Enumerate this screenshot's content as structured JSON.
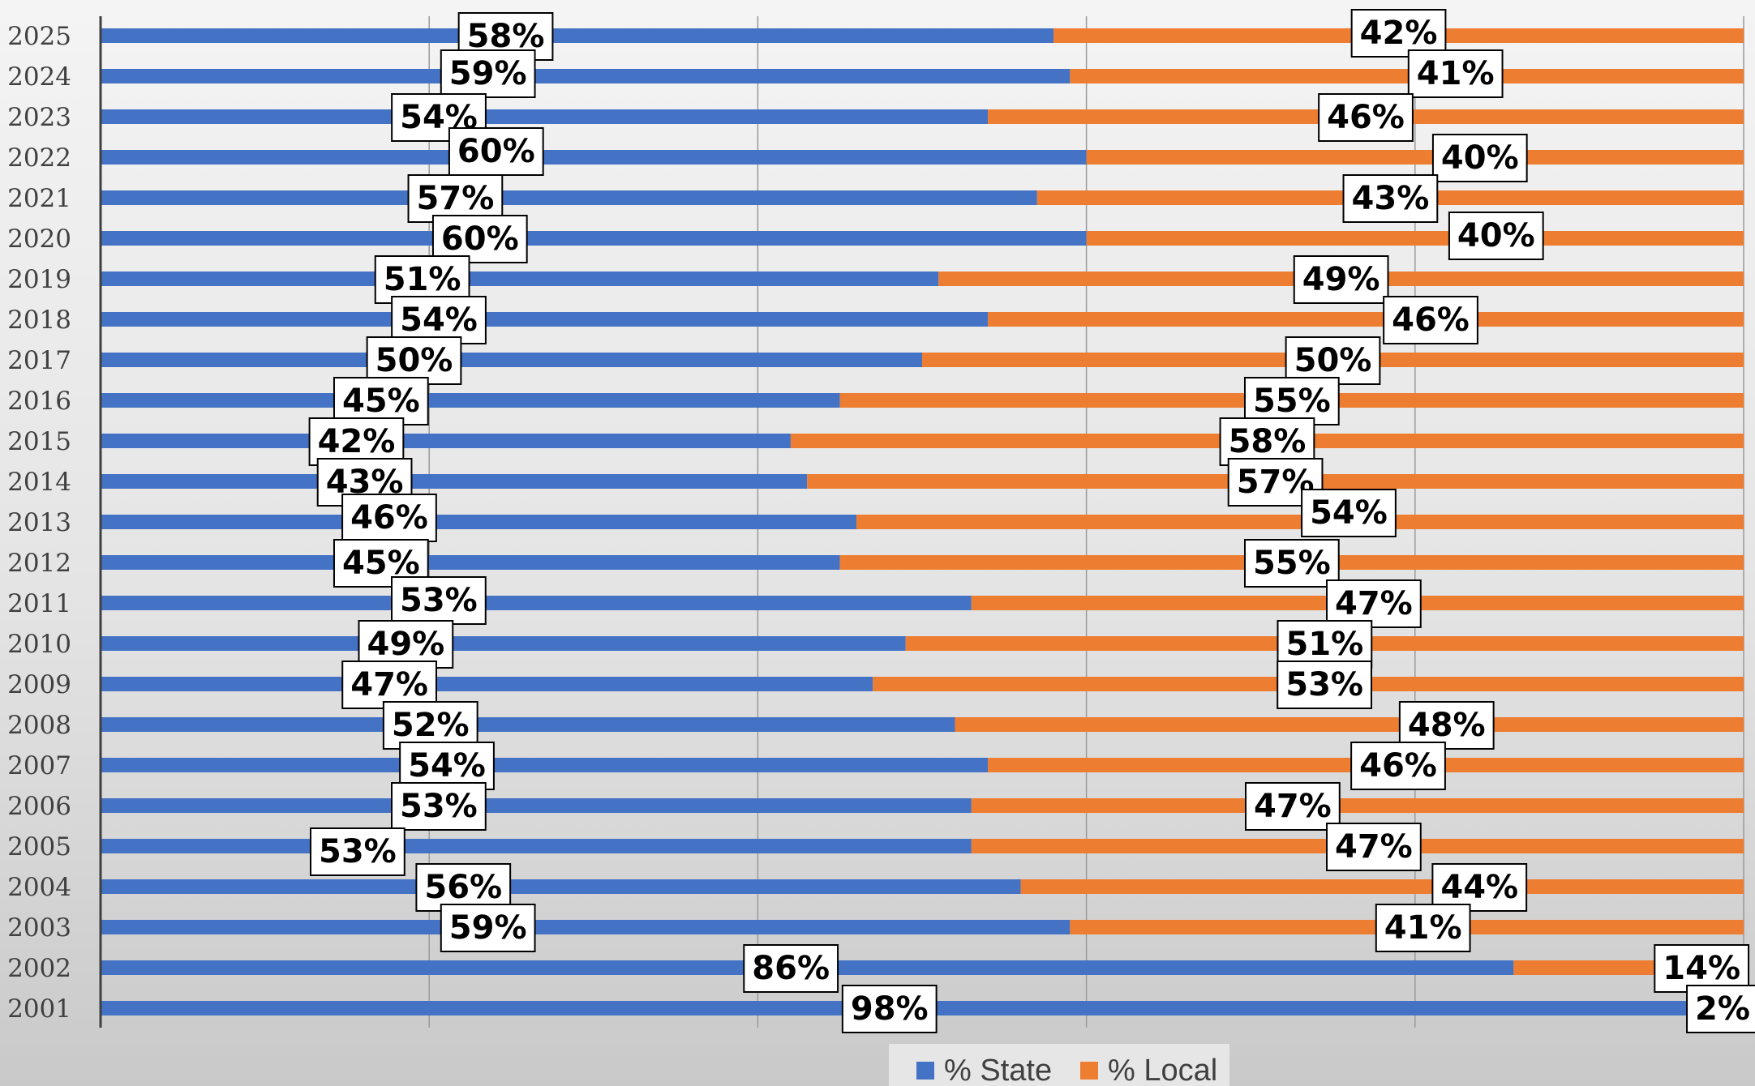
{
  "chart_data": {
    "type": "bar",
    "orientation": "horizontal",
    "stacked": "percent",
    "title": "",
    "xlabel": "",
    "ylabel": "",
    "xlim": [
      0,
      100
    ],
    "grid": true,
    "legend_position": "bottom",
    "categories": [
      "2025",
      "2024",
      "2023",
      "2022",
      "2021",
      "2020",
      "2019",
      "2018",
      "2017",
      "2016",
      "2015",
      "2014",
      "2013",
      "2012",
      "2011",
      "2010",
      "2009",
      "2008",
      "2007",
      "2006",
      "2005",
      "2004",
      "2003",
      "2002",
      "2001"
    ],
    "series": [
      {
        "name": "% State",
        "color": "#4472c4",
        "values": [
          58,
          59,
          54,
          60,
          57,
          60,
          51,
          54,
          50,
          45,
          42,
          43,
          46,
          45,
          53,
          49,
          47,
          52,
          54,
          53,
          53,
          56,
          59,
          86,
          98
        ],
        "labels": [
          "58%",
          "59%",
          "54%",
          "60%",
          "57%",
          "60%",
          "51%",
          "54%",
          "50%",
          "45%",
          "42%",
          "43%",
          "46%",
          "45%",
          "53%",
          "49%",
          "47%",
          "52%",
          "54%",
          "53%",
          "53%",
          "56%",
          "59%",
          "86%",
          "98%"
        ]
      },
      {
        "name": "% Local",
        "color": "#ed7d31",
        "values": [
          42,
          41,
          46,
          40,
          43,
          40,
          49,
          46,
          50,
          55,
          58,
          57,
          54,
          55,
          47,
          51,
          53,
          48,
          46,
          47,
          47,
          44,
          41,
          14,
          2
        ],
        "labels": [
          "42%",
          "41%",
          "46%",
          "40%",
          "43%",
          "40%",
          "49%",
          "46%",
          "50%",
          "55%",
          "58%",
          "57%",
          "54%",
          "55%",
          "47%",
          "51%",
          "53%",
          "48%",
          "46%",
          "47%",
          "47%",
          "44%",
          "41%",
          "14%",
          "2%"
        ]
      }
    ]
  }
}
